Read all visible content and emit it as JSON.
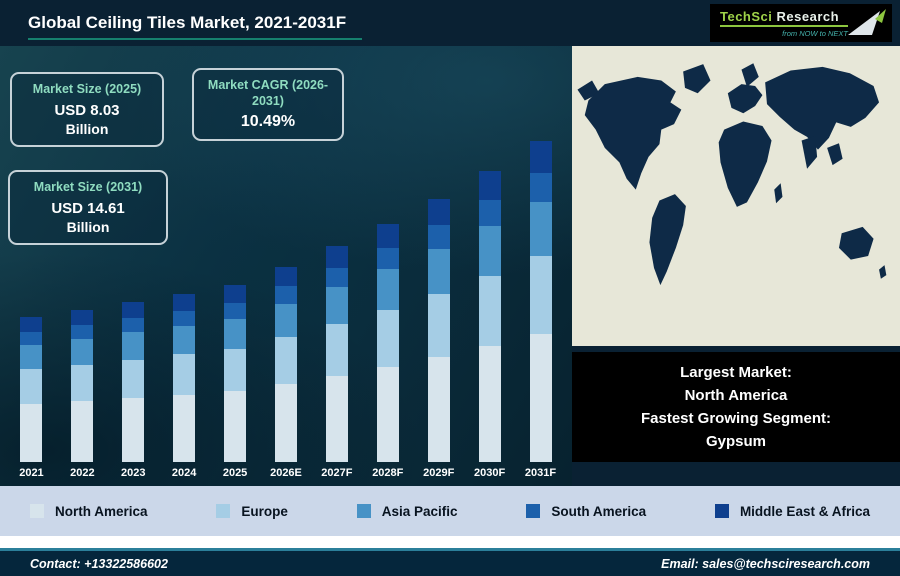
{
  "header": {
    "title": "Global Ceiling Tiles Market, 2021-2031F"
  },
  "logo": {
    "brand_part1": "TechSci",
    "brand_part2": "Research",
    "tagline": "from NOW to NEXT"
  },
  "info_boxes": {
    "size_2025": {
      "label": "Market Size (2025)",
      "value": "USD 8.03",
      "unit": "Billion"
    },
    "cagr": {
      "label": "Market CAGR (2026-2031)",
      "value": "10.49%"
    },
    "size_2031": {
      "label": "Market Size (2031)",
      "value": "USD 14.61",
      "unit": "Billion"
    }
  },
  "market_box": {
    "line1_label": "Largest Market:",
    "line1_value": "North America",
    "line2_label": "Fastest Growing Segment:",
    "line2_value": "Gypsum"
  },
  "footer": {
    "contact": "Contact: +13322586602",
    "email": "Email: sales@techsciresearch.com"
  },
  "colors": {
    "accent_teal": "#16806e",
    "footer_line": "#2b7f9a",
    "legend_band": "#cbd7e9",
    "logo_green": "#8dc63f"
  },
  "chart_data": {
    "type": "bar",
    "stacked": true,
    "title": "Global Ceiling Tiles Market, 2021-2031F",
    "unit": "USD Billion",
    "categories": [
      "2021",
      "2022",
      "2023",
      "2024",
      "2025",
      "2026E",
      "2027F",
      "2028F",
      "2029F",
      "2030F",
      "2031F"
    ],
    "series": [
      {
        "name": "North America",
        "color": "#d7e4ec",
        "values": [
          2.64,
          2.77,
          2.91,
          3.06,
          3.21,
          3.55,
          3.92,
          4.33,
          4.79,
          5.29,
          5.84
        ]
      },
      {
        "name": "Europe",
        "color": "#a5cde5",
        "values": [
          1.58,
          1.66,
          1.75,
          1.83,
          1.93,
          2.13,
          2.35,
          2.6,
          2.87,
          3.17,
          3.51
        ]
      },
      {
        "name": "Asia Pacific",
        "color": "#4792c6",
        "values": [
          1.12,
          1.18,
          1.24,
          1.3,
          1.37,
          1.51,
          1.67,
          1.84,
          2.03,
          2.25,
          2.48
        ]
      },
      {
        "name": "South America",
        "color": "#1c60ab",
        "values": [
          0.59,
          0.62,
          0.66,
          0.69,
          0.72,
          0.8,
          0.88,
          0.97,
          1.08,
          1.19,
          1.31
        ]
      },
      {
        "name": "Middle East & Africa",
        "color": "#0e3f8e",
        "values": [
          0.66,
          0.69,
          0.73,
          0.76,
          0.8,
          0.89,
          0.98,
          1.08,
          1.2,
          1.32,
          1.46
        ]
      }
    ],
    "ylim": [
      0,
      15
    ],
    "grid": false,
    "legend_position": "bottom",
    "annotations": {
      "market_size_2025_usd_billion": 8.03,
      "market_size_2031_usd_billion": 14.61,
      "cagr_2026_2031": "10.49%"
    }
  }
}
